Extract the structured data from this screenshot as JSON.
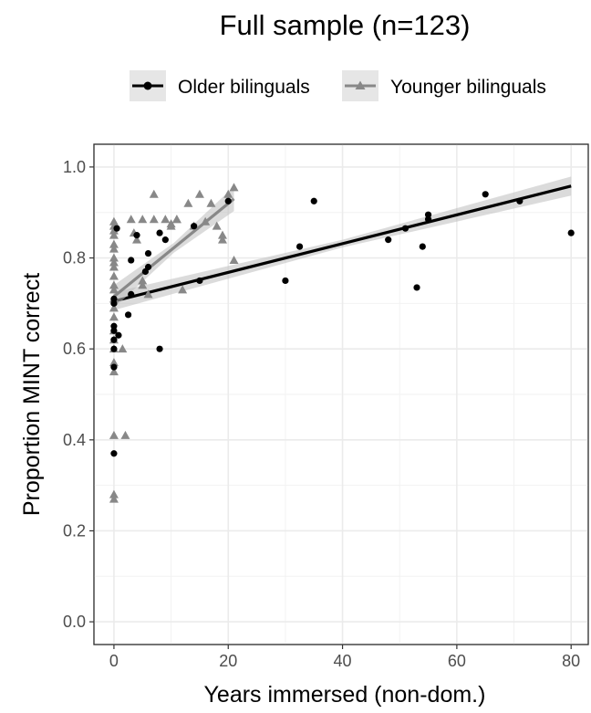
{
  "chart_data": {
    "type": "scatter",
    "title": "Full sample (n=123)",
    "xlabel": "Years immersed (non-dom.)",
    "ylabel": "Proportion MINT correct",
    "xlim": [
      -3.5,
      83
    ],
    "ylim": [
      -0.05,
      1.05
    ],
    "x_ticks": [
      0,
      20,
      40,
      60,
      80
    ],
    "y_ticks": [
      0.0,
      0.2,
      0.4,
      0.6,
      0.8,
      1.0
    ],
    "x_tick_labels": [
      "0",
      "20",
      "40",
      "60",
      "80"
    ],
    "y_tick_labels": [
      "0.0",
      "0.2",
      "0.4",
      "0.6",
      "0.8",
      "1.0"
    ],
    "grid": true,
    "legend_position": "top",
    "series": [
      {
        "name": "Older bilinguals",
        "marker": "circle",
        "color": "#000000",
        "points": [
          [
            0,
            0.37
          ],
          [
            0,
            0.56
          ],
          [
            0,
            0.6
          ],
          [
            0,
            0.62
          ],
          [
            0,
            0.64
          ],
          [
            0,
            0.65
          ],
          [
            0,
            0.7
          ],
          [
            0,
            0.71
          ],
          [
            0.5,
            0.865
          ],
          [
            0.8,
            0.63
          ],
          [
            2.5,
            0.675
          ],
          [
            3,
            0.72
          ],
          [
            3,
            0.795
          ],
          [
            4,
            0.85
          ],
          [
            5.5,
            0.77
          ],
          [
            6,
            0.78
          ],
          [
            6,
            0.81
          ],
          [
            8,
            0.6
          ],
          [
            8,
            0.855
          ],
          [
            9,
            0.84
          ],
          [
            14,
            0.87
          ],
          [
            15,
            0.75
          ],
          [
            20,
            0.925
          ],
          [
            30,
            0.75
          ],
          [
            32.5,
            0.825
          ],
          [
            35,
            0.925
          ],
          [
            48,
            0.84
          ],
          [
            51,
            0.865
          ],
          [
            53,
            0.735
          ],
          [
            54,
            0.825
          ],
          [
            55,
            0.895
          ],
          [
            55,
            0.885
          ],
          [
            65,
            0.94
          ],
          [
            71,
            0.925
          ],
          [
            80,
            0.855
          ]
        ],
        "fit": {
          "x": [
            0,
            80
          ],
          "y": [
            0.705,
            0.958
          ]
        }
      },
      {
        "name": "Younger bilinguals",
        "marker": "triangle",
        "color": "#888888",
        "points": [
          [
            0,
            0.27
          ],
          [
            0,
            0.28
          ],
          [
            0,
            0.41
          ],
          [
            0,
            0.55
          ],
          [
            0,
            0.57
          ],
          [
            0,
            0.6
          ],
          [
            0,
            0.62
          ],
          [
            0,
            0.64
          ],
          [
            0,
            0.67
          ],
          [
            0,
            0.69
          ],
          [
            0,
            0.71
          ],
          [
            0,
            0.73
          ],
          [
            0,
            0.74
          ],
          [
            0,
            0.76
          ],
          [
            0,
            0.78
          ],
          [
            0,
            0.79
          ],
          [
            0,
            0.8
          ],
          [
            0,
            0.82
          ],
          [
            0,
            0.83
          ],
          [
            0,
            0.85
          ],
          [
            0,
            0.86
          ],
          [
            0,
            0.87
          ],
          [
            0,
            0.88
          ],
          [
            1.5,
            0.6
          ],
          [
            2,
            0.41
          ],
          [
            3,
            0.885
          ],
          [
            3.5,
            0.855
          ],
          [
            4,
            0.84
          ],
          [
            5,
            0.885
          ],
          [
            5,
            0.75
          ],
          [
            5,
            0.74
          ],
          [
            6,
            0.72
          ],
          [
            7,
            0.885
          ],
          [
            7,
            0.94
          ],
          [
            9,
            0.885
          ],
          [
            10,
            0.875
          ],
          [
            10,
            0.87
          ],
          [
            11,
            0.885
          ],
          [
            11,
            0.885
          ],
          [
            12,
            0.73
          ],
          [
            13,
            0.92
          ],
          [
            14,
            0.87
          ],
          [
            15,
            0.94
          ],
          [
            16,
            0.88
          ],
          [
            17,
            0.92
          ],
          [
            18,
            0.87
          ],
          [
            19,
            0.85
          ],
          [
            19,
            0.84
          ],
          [
            20,
            0.94
          ],
          [
            21,
            0.955
          ],
          [
            21,
            0.795
          ]
        ],
        "fit": {
          "x": [
            0,
            21
          ],
          "y": [
            0.715,
            0.93
          ]
        }
      }
    ]
  }
}
